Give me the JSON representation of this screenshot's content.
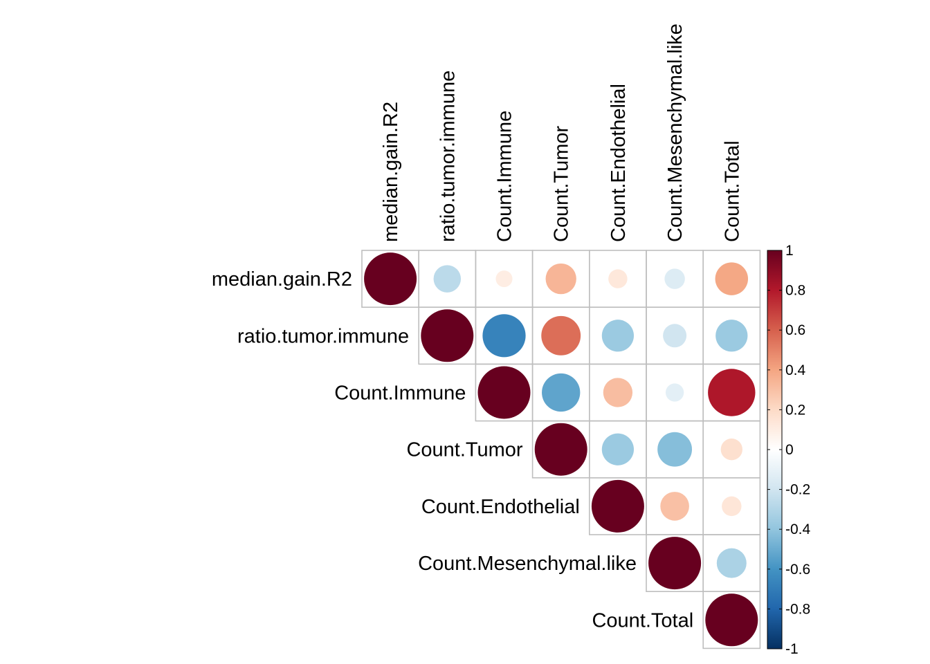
{
  "chart_data": {
    "type": "heatmap",
    "variables": [
      "median.gain.R2",
      "ratio.tumor.immune",
      "Count.Immune",
      "Count.Tumor",
      "Count.Endothelial",
      "Count.Mesenchymal.like",
      "Count.Total"
    ],
    "matrix": [
      [
        1.0,
        -0.27,
        0.1,
        0.34,
        0.13,
        -0.15,
        0.39
      ],
      [
        null,
        1.0,
        -0.67,
        0.56,
        -0.37,
        -0.2,
        -0.37
      ],
      [
        null,
        null,
        1.0,
        -0.53,
        0.31,
        -0.12,
        0.81
      ],
      [
        null,
        null,
        null,
        1.0,
        -0.37,
        -0.43,
        0.17
      ],
      [
        null,
        null,
        null,
        null,
        1.0,
        0.3,
        0.14
      ],
      [
        null,
        null,
        null,
        null,
        null,
        1.0,
        -0.32
      ],
      [
        null,
        null,
        null,
        null,
        null,
        null,
        1.0
      ]
    ],
    "display": "upper-triangle, circles",
    "color_scale": {
      "range": [
        -1,
        1
      ],
      "ticks": [
        "1",
        "0.8",
        "0.6",
        "0.4",
        "0.2",
        "0",
        "-0.2",
        "-0.4",
        "-0.6",
        "-0.8",
        "-1"
      ],
      "colors": [
        "#67001F",
        "#B2182B",
        "#D6604D",
        "#F4A582",
        "#FDDBC7",
        "#FFFFFF",
        "#D1E5F0",
        "#92C5DE",
        "#4393C3",
        "#2166AC",
        "#053061"
      ]
    },
    "grid_color": "#BEBEBE",
    "legend_position": "right"
  }
}
